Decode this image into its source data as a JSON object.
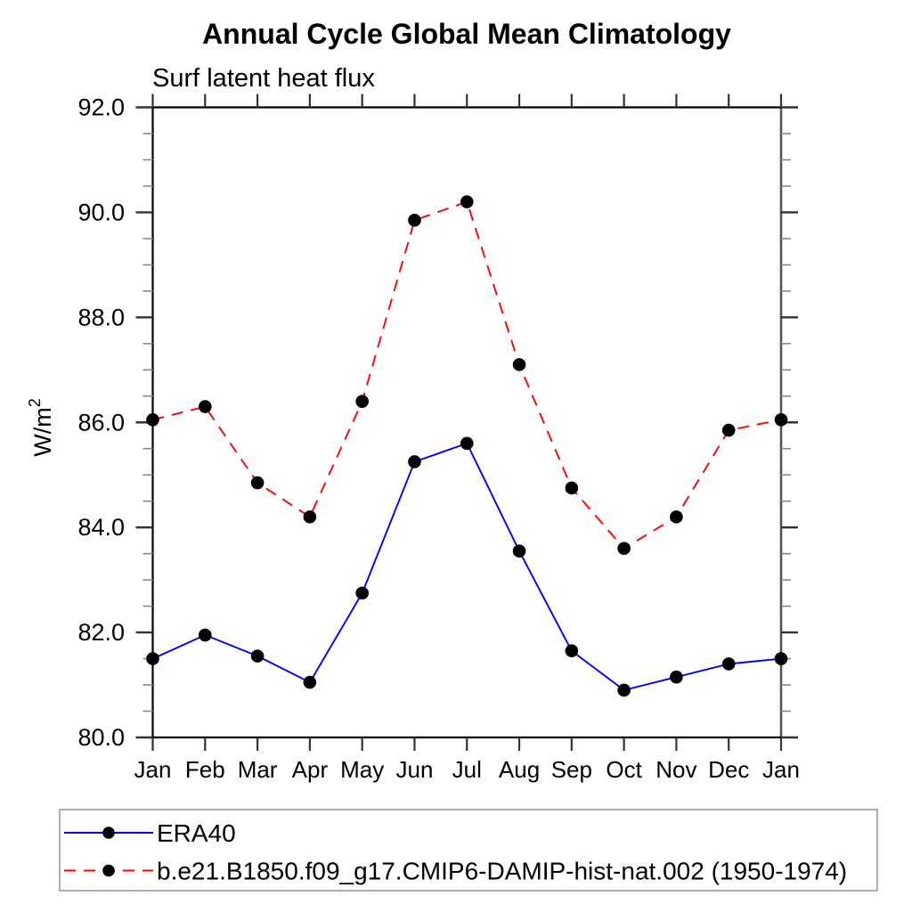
{
  "title": "Annual Cycle Global Mean Climatology",
  "subtitle": "Surf latent heat flux",
  "ylabel": {
    "base": "W/m",
    "exp": "2"
  },
  "legend": {
    "position": "bottom-left",
    "entries": [
      {
        "label": "ERA40",
        "color": "#0000ff",
        "style": "solid",
        "marker_color": "#000000"
      },
      {
        "label": "b.e21.B1850.f09_g17.CMIP6-DAMIP-hist-nat.002 (1950-1974)",
        "color": "#ff0000",
        "style": "dashed",
        "marker_color": "#000000"
      }
    ]
  },
  "chart_data": {
    "type": "line",
    "title": "Annual Cycle Global Mean Climatology",
    "subtitle": "Surf latent heat flux",
    "ylabel": "W/m²",
    "xlabel": "",
    "categories": [
      "Jan",
      "Feb",
      "Mar",
      "Apr",
      "May",
      "Jun",
      "Jul",
      "Aug",
      "Sep",
      "Oct",
      "Nov",
      "Dec",
      "Jan"
    ],
    "series": [
      {
        "name": "ERA40",
        "color": "#0000ff",
        "style": "solid",
        "marker": "circle",
        "marker_color": "#000000",
        "values": [
          81.5,
          81.95,
          81.55,
          81.05,
          82.75,
          85.25,
          85.6,
          83.55,
          81.65,
          80.9,
          81.15,
          81.4,
          81.5
        ]
      },
      {
        "name": "b.e21.B1850.f09_g17.CMIP6-DAMIP-hist-nat.002 (1950-1974)",
        "color": "#ff0000",
        "style": "dashed",
        "marker": "circle",
        "marker_color": "#000000",
        "values": [
          86.05,
          86.3,
          84.85,
          84.2,
          86.4,
          89.85,
          90.2,
          87.1,
          84.75,
          83.6,
          84.2,
          85.85,
          86.05
        ]
      }
    ],
    "ylim": [
      80.0,
      92.0
    ],
    "ytick_step": 2.0,
    "ytick_minor_step": 0.5,
    "ytick_labels": [
      "80.0",
      "82.0",
      "84.0",
      "86.0",
      "88.0",
      "90.0",
      "92.0"
    ],
    "grid": false,
    "legend_position": "bottom-left"
  },
  "style": {
    "axis_color": "#000000",
    "major_tick_color": "#333333",
    "minor_tick_color": "#888888",
    "legend_border_color": "#999999",
    "background": "#ffffff"
  }
}
